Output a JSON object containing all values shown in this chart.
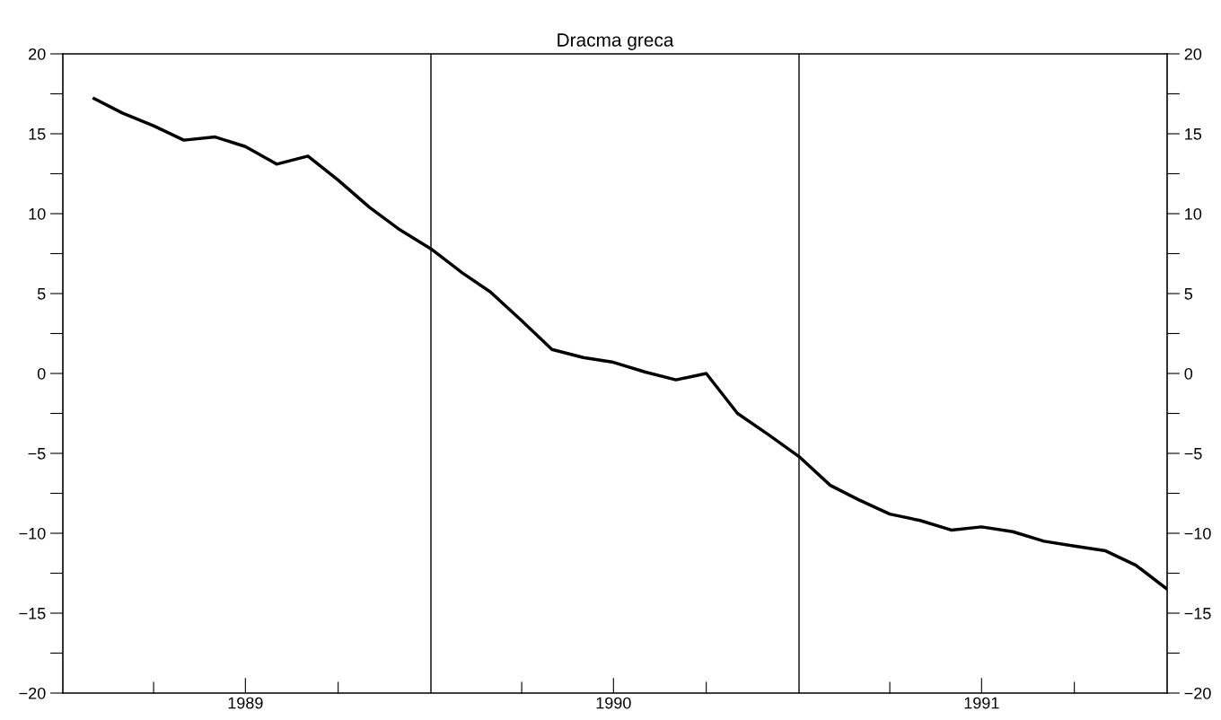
{
  "chart_data": {
    "type": "line",
    "title": "Dracma greca",
    "x": [
      "1989-02",
      "1989-03",
      "1989-04",
      "1989-05",
      "1989-06",
      "1989-07",
      "1989-08",
      "1989-09",
      "1989-10",
      "1989-11",
      "1989-12",
      "1990-01",
      "1990-02",
      "1990-03",
      "1990-04",
      "1990-05",
      "1990-06",
      "1990-07",
      "1990-08",
      "1990-09",
      "1990-10",
      "1990-11",
      "1990-12",
      "1991-01",
      "1991-02",
      "1991-03",
      "1991-04",
      "1991-05",
      "1991-06",
      "1991-07",
      "1991-08",
      "1991-09",
      "1991-10",
      "1991-11",
      "1991-12",
      "1992-01"
    ],
    "series": [
      {
        "color": "#000000",
        "values": [
          17.2,
          16.3,
          15.5,
          14.6,
          14.8,
          14.2,
          13.1,
          13.6,
          12.1,
          10.4,
          9.0,
          7.8,
          6.3,
          5.1,
          3.3,
          1.5,
          1.0,
          0.7,
          0.1,
          -0.4,
          0.0,
          -2.5,
          -3.8,
          -5.2,
          -7.0,
          -7.9,
          -8.8,
          -9.2,
          -9.8,
          -9.6,
          -9.9,
          -10.5,
          -10.8,
          -11.1,
          -12.0,
          -13.5
        ]
      }
    ],
    "xlim": [
      "1989-01",
      "1992-01"
    ],
    "xticks": [
      {
        "value": "1989-04",
        "label": null
      },
      {
        "value": "1989-07",
        "label": "1989"
      },
      {
        "value": "1989-10",
        "label": null
      },
      {
        "value": "1990-04",
        "label": null
      },
      {
        "value": "1990-07",
        "label": "1990"
      },
      {
        "value": "1990-10",
        "label": null
      },
      {
        "value": "1991-04",
        "label": null
      },
      {
        "value": "1991-07",
        "label": "1991"
      },
      {
        "value": "1991-10",
        "label": null
      }
    ],
    "ylim": [
      -20,
      20
    ],
    "yticks": [
      -20,
      {
        "value": -17.5,
        "label": null
      },
      -15,
      {
        "value": -12.5,
        "label": null
      },
      -10,
      {
        "value": -7.5,
        "label": null
      },
      -5,
      {
        "value": -2.5,
        "label": null
      },
      0,
      {
        "value": 2.5,
        "label": null
      },
      5,
      {
        "value": 7.5,
        "label": null
      },
      10,
      {
        "value": 12.5,
        "label": null
      },
      15,
      {
        "value": 17.5,
        "label": null
      },
      20
    ],
    "y2lim": [
      -20,
      20
    ],
    "y2ticks": [
      -20,
      {
        "value": -17.5,
        "label": null
      },
      -15,
      {
        "value": -12.5,
        "label": null
      },
      -10,
      {
        "value": -7.5,
        "label": null
      },
      -5,
      {
        "value": -2.5,
        "label": null
      },
      0,
      {
        "value": 2.5,
        "label": null
      },
      5,
      {
        "value": 7.5,
        "label": null
      },
      10,
      {
        "value": 12.5,
        "label": null
      },
      15,
      {
        "value": 17.5,
        "label": null
      },
      20
    ],
    "ref_lines": [
      {
        "axis": "x",
        "value": "1990-01",
        "color": "#000000"
      },
      {
        "axis": "x",
        "value": "1991-01",
        "color": "#000000"
      }
    ],
    "grid": false,
    "line_style": "solid"
  }
}
